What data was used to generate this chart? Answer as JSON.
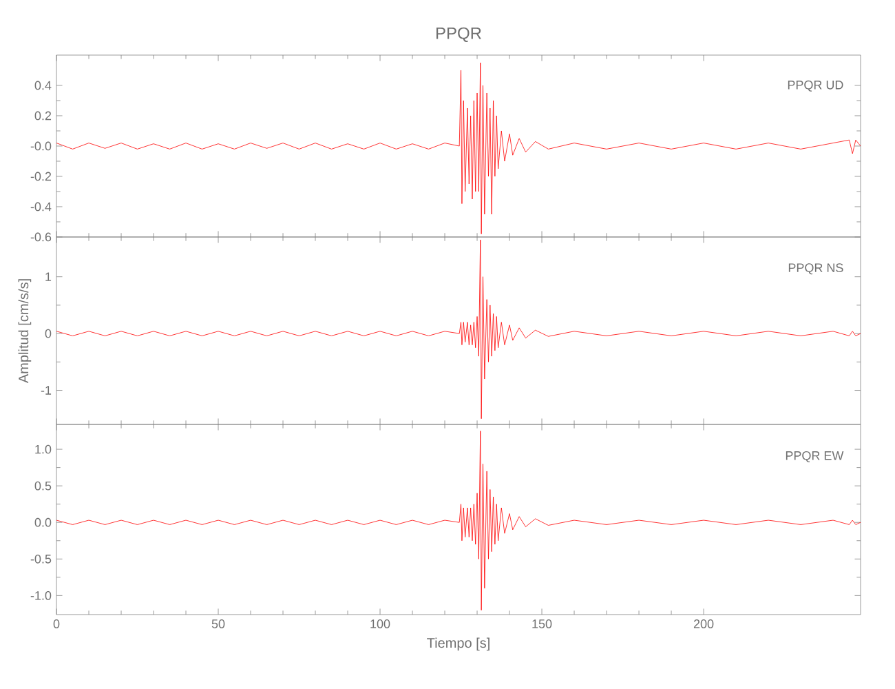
{
  "chart_data": [
    {
      "type": "line",
      "title": "PPQR",
      "annotations": [
        "PPQR UD"
      ],
      "tick_labels": "y",
      "xlim": [
        0,
        248.5
      ],
      "xticks": [
        0,
        50,
        100,
        150,
        200
      ],
      "ylim": [
        -0.6,
        0.6
      ],
      "yticks": [
        -0.6,
        -0.4,
        -0.2,
        {
          "value": 0,
          "label": "-0.0"
        },
        0.2,
        0.4
      ],
      "x": [
        0,
        5,
        10,
        15,
        20,
        25,
        30,
        35,
        40,
        45,
        50,
        55,
        60,
        65,
        70,
        75,
        80,
        85,
        90,
        95,
        100,
        105,
        110,
        115,
        120,
        124.5,
        125,
        125.3,
        125.8,
        126.3,
        127,
        127.5,
        128,
        128.5,
        129,
        129.5,
        130,
        130.5,
        131,
        131.3,
        131.8,
        132.3,
        133,
        133.5,
        134,
        134.5,
        135,
        135.5,
        136,
        136.5,
        137.5,
        138.5,
        140,
        141,
        143,
        145,
        148,
        152,
        160,
        170,
        180,
        190,
        200,
        210,
        220,
        230,
        240,
        245,
        246,
        247,
        248.5
      ],
      "series": [
        {
          "color": "#ff0000",
          "values": [
            0.02,
            -0.02,
            0.02,
            -0.015,
            0.02,
            -0.02,
            0.015,
            -0.02,
            0.02,
            -0.02,
            0.015,
            -0.02,
            0.02,
            -0.015,
            0.02,
            -0.02,
            0.02,
            -0.02,
            0.015,
            -0.02,
            0.02,
            -0.02,
            0.015,
            -0.02,
            0.02,
            0.0,
            0.5,
            -0.38,
            0.3,
            -0.3,
            0.25,
            -0.25,
            0.2,
            -0.35,
            0.3,
            -0.3,
            0.35,
            -0.3,
            0.55,
            -0.58,
            0.4,
            -0.45,
            0.35,
            -0.2,
            0.25,
            -0.45,
            0.3,
            -0.2,
            0.2,
            -0.15,
            0.1,
            -0.1,
            0.08,
            -0.06,
            0.05,
            -0.04,
            0.03,
            -0.02,
            0.02,
            -0.02,
            0.02,
            -0.02,
            0.02,
            -0.02,
            0.02,
            -0.02,
            0.02,
            0.04,
            -0.05,
            0.04,
            0.0
          ]
        }
      ]
    },
    {
      "type": "line",
      "ylabel": "Amplitud [cm/s/s]",
      "annotations": [
        "PPQR NS"
      ],
      "tick_labels": "y",
      "xlim": [
        0,
        248.5
      ],
      "xticks": [
        0,
        50,
        100,
        150,
        200
      ],
      "ylim": [
        -1.6,
        1.7
      ],
      "yticks": [
        -1,
        0,
        1
      ],
      "x": [
        0,
        5,
        10,
        15,
        20,
        25,
        30,
        35,
        40,
        45,
        50,
        55,
        60,
        65,
        70,
        75,
        80,
        85,
        90,
        95,
        100,
        105,
        110,
        115,
        120,
        124.5,
        125,
        125.3,
        125.8,
        126.3,
        127,
        127.5,
        128,
        128.5,
        129,
        129.5,
        130,
        130.5,
        131,
        131.3,
        131.8,
        132.3,
        133,
        133.5,
        134,
        134.5,
        135,
        135.5,
        136,
        136.5,
        137.5,
        138.5,
        140,
        141,
        143,
        145,
        148,
        152,
        160,
        170,
        180,
        190,
        200,
        210,
        220,
        230,
        240,
        245,
        246,
        247,
        248.5
      ],
      "series": [
        {
          "color": "#ff0000",
          "values": [
            0.04,
            -0.04,
            0.04,
            -0.04,
            0.04,
            -0.04,
            0.04,
            -0.04,
            0.04,
            -0.04,
            0.04,
            -0.04,
            0.04,
            -0.04,
            0.04,
            -0.04,
            0.04,
            -0.04,
            0.04,
            -0.04,
            0.04,
            -0.04,
            0.04,
            -0.04,
            0.04,
            0.0,
            0.2,
            -0.2,
            0.2,
            -0.15,
            0.2,
            -0.2,
            0.15,
            -0.2,
            0.2,
            -0.25,
            0.3,
            -0.4,
            1.65,
            -1.5,
            1.0,
            -0.8,
            0.6,
            -0.5,
            0.5,
            -0.4,
            0.35,
            -0.3,
            0.3,
            -0.25,
            0.2,
            -0.2,
            0.15,
            -0.12,
            0.1,
            -0.08,
            0.06,
            -0.05,
            0.04,
            -0.04,
            0.04,
            -0.04,
            0.04,
            -0.04,
            0.04,
            -0.04,
            0.04,
            -0.04,
            0.04,
            -0.04,
            0.0
          ]
        }
      ]
    },
    {
      "type": "line",
      "xlabel": "Tiempo [s]",
      "annotations": [
        "PPQR EW"
      ],
      "xlim": [
        0,
        248.5
      ],
      "xticks": [
        0,
        50,
        100,
        150,
        200
      ],
      "ylim": [
        -1.26,
        1.34
      ],
      "yticks": [
        {
          "value": -1,
          "label": "-1.0"
        },
        -0.5,
        {
          "value": 0,
          "label": "0.0"
        },
        0.5,
        {
          "value": 1,
          "label": "1.0"
        }
      ],
      "x": [
        0,
        5,
        10,
        15,
        20,
        25,
        30,
        35,
        40,
        45,
        50,
        55,
        60,
        65,
        70,
        75,
        80,
        85,
        90,
        95,
        100,
        105,
        110,
        115,
        120,
        124.5,
        125,
        125.3,
        125.8,
        126.3,
        127,
        127.5,
        128,
        128.5,
        129,
        129.5,
        130,
        130.5,
        131,
        131.3,
        131.8,
        132.3,
        133,
        133.5,
        134,
        134.5,
        135,
        135.5,
        136,
        136.5,
        137.5,
        138.5,
        140,
        141,
        143,
        145,
        148,
        152,
        160,
        170,
        180,
        190,
        200,
        210,
        220,
        230,
        240,
        245,
        246,
        247,
        248.5
      ],
      "series": [
        {
          "color": "#ff0000",
          "values": [
            0.03,
            -0.03,
            0.03,
            -0.03,
            0.03,
            -0.03,
            0.03,
            -0.03,
            0.03,
            -0.03,
            0.03,
            -0.03,
            0.03,
            -0.03,
            0.03,
            -0.03,
            0.03,
            -0.03,
            0.03,
            -0.03,
            0.03,
            -0.03,
            0.03,
            -0.03,
            0.03,
            0.0,
            0.25,
            -0.25,
            0.2,
            -0.2,
            0.2,
            -0.2,
            0.2,
            -0.25,
            0.25,
            -0.3,
            0.4,
            -0.5,
            1.25,
            -1.2,
            0.8,
            -0.9,
            0.7,
            -0.5,
            0.45,
            -0.4,
            0.35,
            -0.3,
            0.25,
            -0.25,
            0.2,
            -0.15,
            0.12,
            -0.1,
            0.08,
            -0.06,
            0.05,
            -0.04,
            0.03,
            -0.03,
            0.03,
            -0.03,
            0.03,
            -0.03,
            0.03,
            -0.03,
            0.03,
            -0.03,
            0.03,
            -0.03,
            0.0
          ]
        }
      ]
    }
  ]
}
